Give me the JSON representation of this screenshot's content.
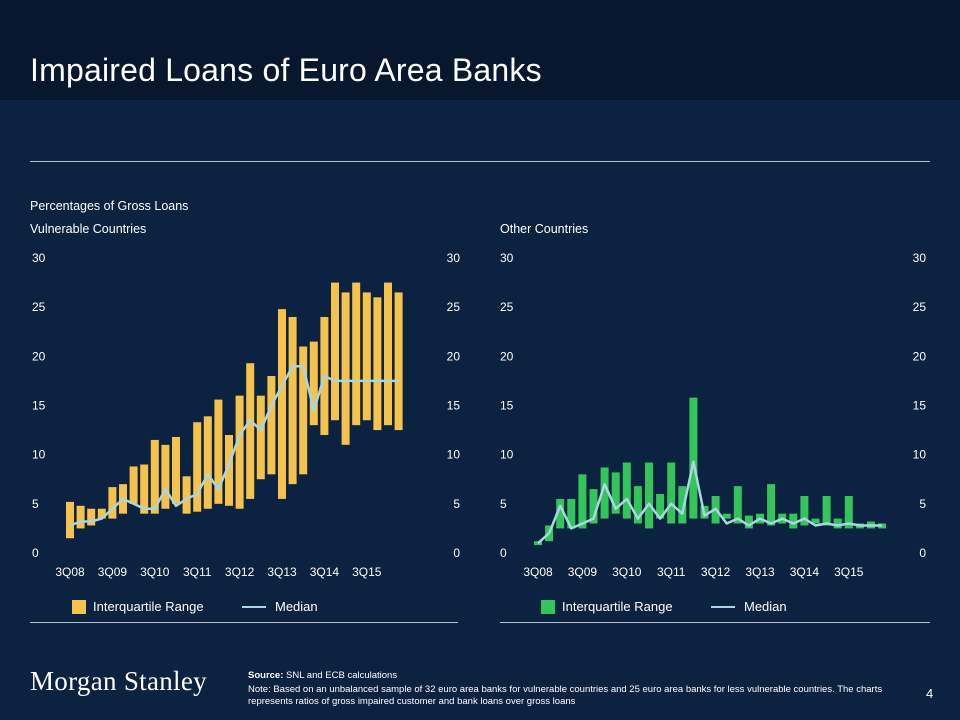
{
  "title": "Impaired Loans of Euro Area Banks",
  "subtitle": "Percentages of Gross Loans",
  "footer": {
    "logo": "Morgan Stanley",
    "source_label": "Source:",
    "source_text": "SNL and ECB calculations",
    "note": "Note: Based on an unbalanced sample of 32 euro area banks for vulnerable countries and 25 euro area banks for less vulnerable countries. The charts represents ratios of gross impaired customer and bank loans over gross loans",
    "page_number": "4"
  },
  "colors": {
    "background": "#0b2240",
    "title_bar": "#07182e",
    "vulnerable_bar": "#f5c34d",
    "other_bar": "#33c55a",
    "median_line": "#a9d6e0"
  },
  "chart_data": [
    {
      "type": "bar",
      "title": "Vulnerable Countries",
      "ylim": [
        0,
        30
      ],
      "y_ticks": [
        "0",
        "5",
        "10",
        "15",
        "20",
        "25",
        "30"
      ],
      "x_tick_labels": [
        "3Q08",
        "3Q09",
        "3Q10",
        "3Q11",
        "3Q12",
        "3Q13",
        "3Q14",
        "3Q15"
      ],
      "legend": [
        "Interquartile Range",
        "Median"
      ],
      "range_low": [
        1.5,
        2.5,
        2.8,
        3.5,
        3.5,
        4.0,
        5.0,
        4.0,
        4.0,
        4.5,
        5.0,
        4.0,
        4.2,
        4.5,
        5.0,
        4.8,
        4.5,
        5.5,
        7.5,
        8.0,
        5.5,
        7.0,
        8.0,
        13.0,
        12.0,
        13.5,
        11.0,
        13.0,
        13.5,
        12.5,
        13.0,
        12.5
      ],
      "range_high": [
        5.2,
        4.8,
        4.5,
        4.5,
        6.7,
        7.0,
        8.8,
        9.0,
        11.5,
        11.0,
        11.8,
        7.8,
        13.3,
        13.9,
        15.6,
        12.0,
        16.0,
        19.3,
        16.0,
        18.0,
        24.8,
        24.0,
        21.0,
        21.5,
        24.0,
        27.5,
        26.5,
        27.5,
        26.5,
        26.0,
        27.5,
        26.5
      ],
      "median": [
        2.8,
        3.2,
        3.2,
        3.5,
        4.5,
        5.5,
        5.0,
        4.5,
        4.5,
        6.5,
        4.8,
        5.5,
        6.0,
        8.0,
        6.5,
        9.0,
        12.0,
        13.5,
        12.5,
        15.0,
        17.0,
        19.0,
        19.0,
        14.5,
        18.0,
        17.5,
        17.5,
        17.5,
        17.5,
        17.5,
        17.5,
        17.5
      ]
    },
    {
      "type": "bar",
      "title": "Other Countries",
      "ylim": [
        0,
        30
      ],
      "y_ticks": [
        "0",
        "5",
        "10",
        "15",
        "20",
        "25",
        "30"
      ],
      "x_tick_labels": [
        "3Q08",
        "3Q09",
        "3Q10",
        "3Q11",
        "3Q12",
        "3Q13",
        "3Q14",
        "3Q15"
      ],
      "legend": [
        "Interquartile Range",
        "Median"
      ],
      "range_low": [
        0.8,
        1.2,
        2.5,
        2.5,
        2.5,
        3.0,
        3.5,
        4.0,
        3.5,
        3.0,
        2.5,
        3.5,
        3.0,
        3.0,
        3.5,
        3.5,
        3.0,
        3.5,
        3.0,
        2.5,
        3.0,
        2.8,
        3.0,
        2.5,
        2.8,
        3.0,
        2.8,
        2.5,
        2.5,
        2.5,
        2.5,
        2.5
      ],
      "range_high": [
        1.2,
        2.8,
        5.5,
        5.5,
        8.0,
        6.5,
        8.7,
        8.2,
        9.2,
        6.8,
        9.2,
        6.0,
        9.2,
        6.8,
        15.8,
        4.8,
        5.8,
        4.0,
        6.8,
        3.8,
        4.0,
        7.0,
        4.0,
        4.0,
        5.8,
        3.5,
        5.8,
        3.5,
        5.8,
        3.0,
        3.2,
        3.0
      ],
      "median": [
        1.0,
        2.0,
        4.8,
        2.5,
        3.0,
        3.5,
        7.0,
        4.5,
        5.5,
        3.5,
        5.0,
        3.5,
        5.0,
        4.0,
        9.3,
        3.8,
        4.5,
        3.0,
        3.5,
        2.8,
        3.5,
        3.0,
        3.5,
        3.0,
        3.5,
        2.8,
        3.0,
        2.8,
        3.0,
        2.8,
        2.8,
        2.8
      ]
    }
  ]
}
